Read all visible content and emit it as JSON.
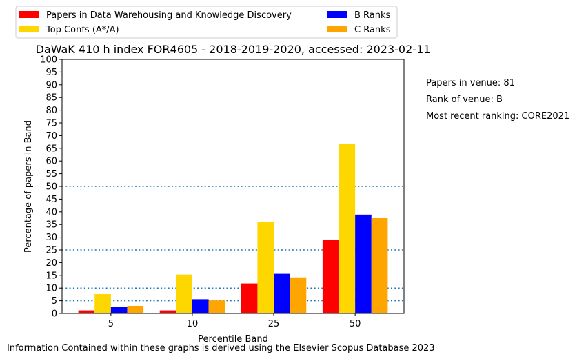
{
  "chart_data": {
    "type": "bar",
    "title": "DaWaK 410 h index FOR4605 - 2018-2019-2020, accessed: 2023-02-11",
    "xlabel": "Percentile Band",
    "ylabel": "Percentage of papers in Band",
    "categories": [
      "5",
      "10",
      "25",
      "50"
    ],
    "ylim": [
      0,
      100
    ],
    "yticks": [
      "0",
      "5",
      "10",
      "15",
      "20",
      "25",
      "30",
      "35",
      "40",
      "45",
      "50",
      "55",
      "60",
      "65",
      "70",
      "75",
      "80",
      "85",
      "90",
      "95",
      "100"
    ],
    "reference_lines": [
      5,
      10,
      25,
      50
    ],
    "legend_placement": "top-left, above plot, 2 columns",
    "series": [
      {
        "name": "Papers in Data Warehousing and Knowledge Discovery",
        "color": "#ff0000",
        "values": [
          1.2,
          1.2,
          11.8,
          29.0
        ]
      },
      {
        "name": "Top Confs (A*/A)",
        "color": "#ffd700",
        "values": [
          7.6,
          15.3,
          36.1,
          66.7
        ]
      },
      {
        "name": "B Ranks",
        "color": "#0000ff",
        "values": [
          2.5,
          5.6,
          15.6,
          38.9
        ]
      },
      {
        "name": "C Ranks",
        "color": "#ffa500",
        "values": [
          3.0,
          5.1,
          14.2,
          37.5
        ]
      }
    ]
  },
  "side_info": [
    "Papers in venue: 81",
    "Rank of venue: B",
    "Most recent ranking: CORE2021"
  ],
  "footer": "Information Contained within these graphs is derived using the Elsevier Scopus Database 2023"
}
